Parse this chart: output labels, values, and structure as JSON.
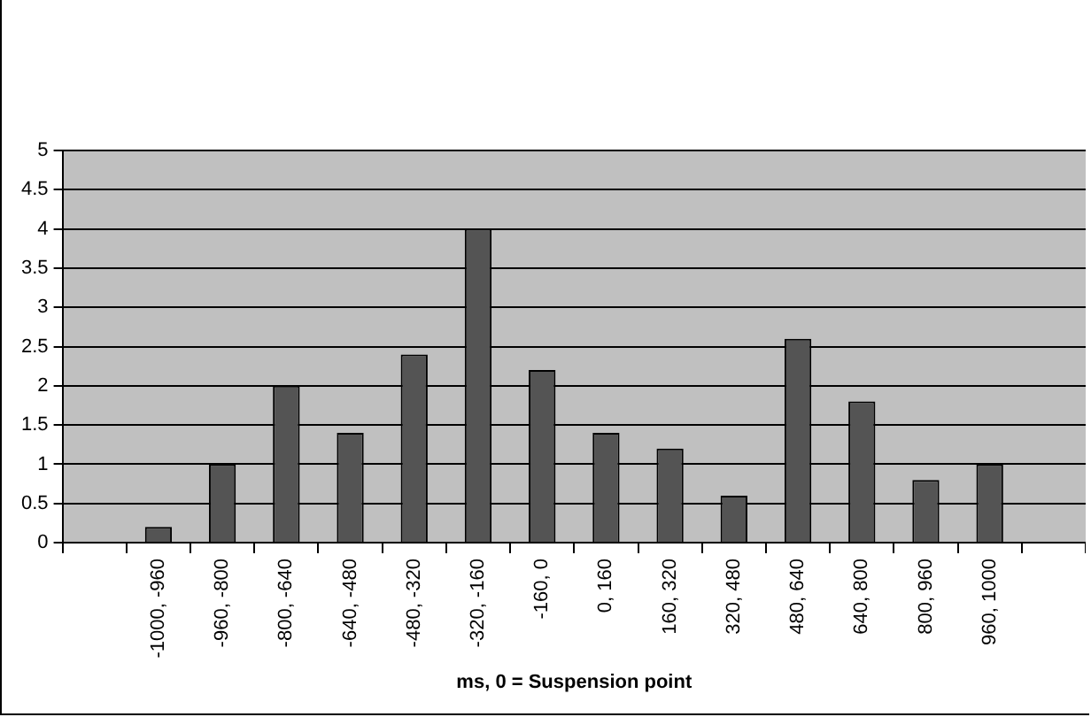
{
  "chart_data": {
    "type": "bar",
    "xlabel": "ms, 0 = Suspension point",
    "categories": [
      null,
      "-1000, -960",
      "-960, -800",
      "-800, -640",
      "-640, -480",
      "-480, -320",
      "-320, -160",
      "-160, 0",
      "0, 160",
      "160, 320",
      "320, 480",
      "480, 640",
      "640, 800",
      "800, 960",
      "960, 1000",
      null
    ],
    "values": [
      null,
      0.2,
      1,
      2,
      1.4,
      2.4,
      4,
      2.2,
      1.4,
      1.2,
      0.6,
      2.6,
      1.8,
      0.8,
      1,
      null
    ],
    "color": "#545454",
    "ylim": [
      0,
      5
    ],
    "yticks": [
      0,
      0.5,
      1,
      1.5,
      2,
      2.5,
      3,
      3.5,
      4,
      4.5,
      5
    ],
    "grid": "y",
    "legend": false
  }
}
